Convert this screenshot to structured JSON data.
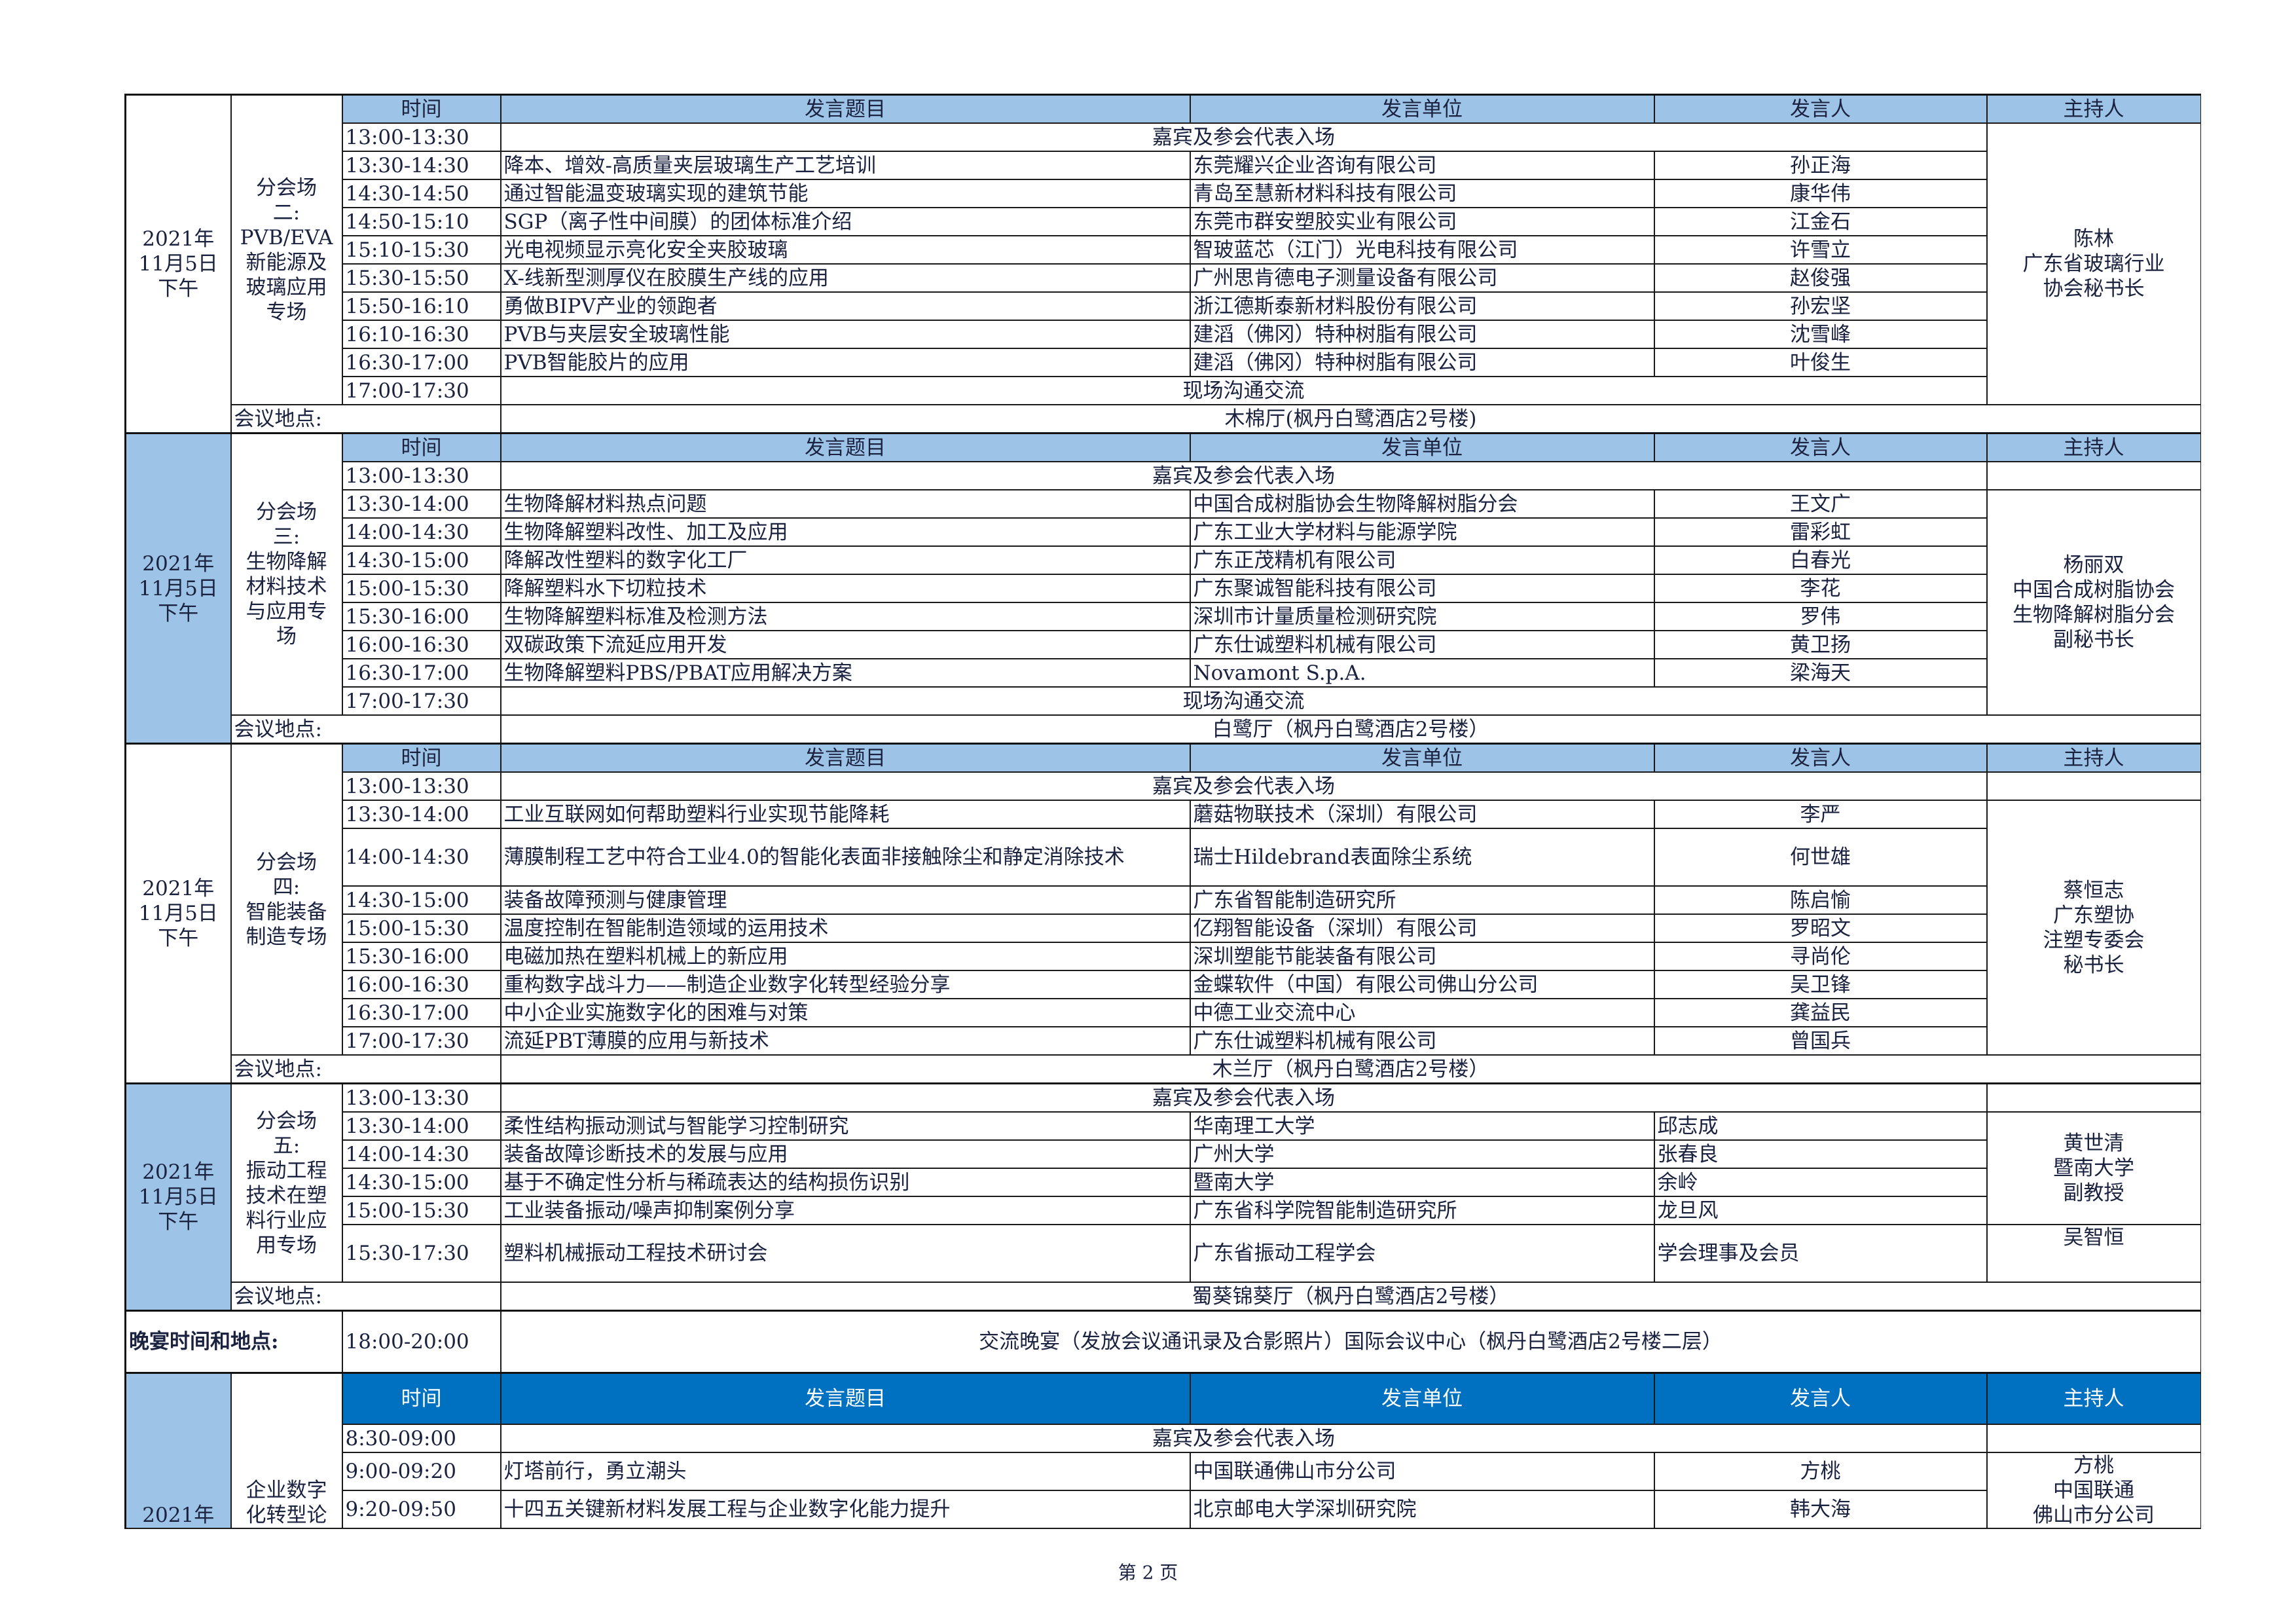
{
  "columns": [
    "时间",
    "发言题目",
    "发言单位",
    "发言人",
    "主持人"
  ],
  "location_label": "会议地点:",
  "sessions": [
    {
      "date": "2021年\n11月5日\n下午",
      "date_highlight": false,
      "name": "分会场\n二:\nPVB/EVA\n新能源及\n玻璃应用\n专场",
      "header": "light",
      "rows": [
        {
          "time": "13:00-13:30",
          "note": "嘉宾及参会代表入场"
        },
        {
          "time": "13:30-14:30",
          "topic": "降本、增效-高质量夹层玻璃生产工艺培训",
          "unit": "东莞耀兴企业咨询有限公司",
          "speaker": "孙正海"
        },
        {
          "time": "14:30-14:50",
          "topic": "通过智能温变玻璃实现的建筑节能",
          "unit": "青岛至慧新材料科技有限公司",
          "speaker": "康华伟"
        },
        {
          "time": "14:50-15:10",
          "topic": "SGP（离子性中间膜）的团体标准介绍",
          "unit": "东莞市群安塑胶实业有限公司",
          "speaker": "江金石"
        },
        {
          "time": "15:10-15:30",
          "topic": "光电视频显示亮化安全夹胶玻璃",
          "unit": "智玻蓝芯（江门）光电科技有限公司",
          "speaker": "许雪立"
        },
        {
          "time": "15:30-15:50",
          "topic": "X-线新型测厚仪在胶膜生产线的应用",
          "unit": "广州思肯德电子测量设备有限公司",
          "speaker": "赵俊强"
        },
        {
          "time": "15:50-16:10",
          "topic": "勇做BIPV产业的领跑者",
          "unit": "浙江德斯泰新材料股份有限公司",
          "speaker": "孙宏坚"
        },
        {
          "time": "16:10-16:30",
          "topic": "PVB与夹层安全玻璃性能",
          "unit": "建滔（佛冈）特种树脂有限公司",
          "speaker": "沈雪峰"
        },
        {
          "time": "16:30-17:00",
          "topic": "PVB智能胶片的应用",
          "unit": "建滔（佛冈）特种树脂有限公司",
          "speaker": "叶俊生"
        },
        {
          "time": "17:00-17:30",
          "note": "现场沟通交流"
        }
      ],
      "hosts": [
        {
          "text": "陈林\n广东省玻璃行业\n协会秘书长",
          "span": 10
        }
      ],
      "location": "木棉厅(枫丹白鹭酒店2号楼)"
    },
    {
      "date": "2021年\n11月5日\n下午",
      "date_highlight": true,
      "name": "分会场\n三:\n生物降解\n材料技术\n与应用专\n场",
      "header": "light",
      "rows": [
        {
          "time": "13:00-13:30",
          "note": "嘉宾及参会代表入场"
        },
        {
          "time": "13:30-14:00",
          "topic": "生物降解材料热点问题",
          "unit": "中国合成树脂协会生物降解树脂分会",
          "speaker": "王文广"
        },
        {
          "time": "14:00-14:30",
          "topic": "生物降解塑料改性、加工及应用",
          "unit": "广东工业大学材料与能源学院",
          "speaker": "雷彩虹"
        },
        {
          "time": "14:30-15:00",
          "topic": "降解改性塑料的数字化工厂",
          "unit": "广东正茂精机有限公司",
          "speaker": "白春光"
        },
        {
          "time": "15:00-15:30",
          "topic": "降解塑料水下切粒技术",
          "unit": "广东聚诚智能科技有限公司",
          "speaker": "李花"
        },
        {
          "time": "15:30-16:00",
          "topic": "生物降解塑料标准及检测方法",
          "unit": "深圳市计量质量检测研究院",
          "speaker": "罗伟"
        },
        {
          "time": "16:00-16:30",
          "topic": "双碳政策下流延应用开发",
          "unit": "广东仕诚塑料机械有限公司",
          "speaker": "黄卫扬"
        },
        {
          "time": "16:30-17:00",
          "topic": "生物降解塑料PBS/PBAT应用解决方案",
          "unit": "Novamont S.p.A.",
          "speaker": "梁海天"
        },
        {
          "time": "17:00-17:30",
          "note": "现场沟通交流"
        }
      ],
      "hosts": [
        {
          "text": "",
          "span": 1
        },
        {
          "text": "杨丽双\n中国合成树脂协会\n生物降解树脂分会\n副秘书长",
          "span": 8
        }
      ],
      "location": "白鹭厅（枫丹白鹭酒店2号楼）"
    },
    {
      "date": "2021年\n11月5日\n下午",
      "date_highlight": false,
      "name": "分会场\n四:\n智能装备\n制造专场",
      "header": "light",
      "rows": [
        {
          "time": "13:00-13:30",
          "note": "嘉宾及参会代表入场"
        },
        {
          "time": "13:30-14:00",
          "topic": "工业互联网如何帮助塑料行业实现节能降耗",
          "unit": "蘑菇物联技术（深圳）有限公司",
          "speaker": "李严"
        },
        {
          "time": "14:00-14:30",
          "topic": "薄膜制程工艺中符合工业4.0的智能化表面非接触除尘和静定消除技术",
          "unit": "瑞士Hildebrand表面除尘系统",
          "speaker": "何世雄",
          "tall": true
        },
        {
          "time": "14:30-15:00",
          "topic": "装备故障预测与健康管理",
          "unit": "广东省智能制造研究所",
          "speaker": "陈启愉"
        },
        {
          "time": "15:00-15:30",
          "topic": "温度控制在智能制造领域的运用技术",
          "unit": "亿翔智能设备（深圳）有限公司",
          "speaker": "罗昭文"
        },
        {
          "time": "15:30-16:00",
          "topic": "电磁加热在塑料机械上的新应用",
          "unit": "深圳塑能节能装备有限公司",
          "speaker": "寻尚伦"
        },
        {
          "time": "16:00-16:30",
          "topic": "重构数字战斗力——制造企业数字化转型经验分享",
          "unit": "金蝶软件（中国）有限公司佛山分公司",
          "speaker": "吴卫锋"
        },
        {
          "time": "16:30-17:00",
          "topic": "中小企业实施数字化的困难与对策",
          "unit": "中德工业交流中心",
          "speaker": "龚益民"
        },
        {
          "time": "17:00-17:30",
          "topic": "流延PBT薄膜的应用与新技术",
          "unit": "广东仕诚塑料机械有限公司",
          "speaker": "曾国兵"
        }
      ],
      "hosts": [
        {
          "text": "",
          "span": 1
        },
        {
          "text": "蔡恒志\n广东塑协\n注塑专委会\n秘书长",
          "span": 8
        }
      ],
      "location": "木兰厅（枫丹白鹭酒店2号楼）"
    },
    {
      "date": "2021年\n11月5日\n下午",
      "date_highlight": true,
      "name": "分会场\n五:\n振动工程\n技术在塑\n料行业应\n用专场",
      "header": "none",
      "speaker_align": "left",
      "rows": [
        {
          "time": "13:00-13:30",
          "note": "嘉宾及参会代表入场"
        },
        {
          "time": "13:30-14:00",
          "topic": "柔性结构振动测试与智能学习控制研究",
          "unit": "华南理工大学",
          "speaker": "邱志成"
        },
        {
          "time": "14:00-14:30",
          "topic": "装备故障诊断技术的发展与应用",
          "unit": "广州大学",
          "speaker": "张春良"
        },
        {
          "time": "14:30-15:00",
          "topic": "基于不确定性分析与稀疏表达的结构损伤识别",
          "unit": "暨南大学",
          "speaker": "余岭"
        },
        {
          "time": "15:00-15:30",
          "topic": "工业装备振动/噪声抑制案例分享",
          "unit": "广东省科学院智能制造研究所",
          "speaker": "龙旦风"
        },
        {
          "time": "15:30-17:30",
          "topic": "塑料机械振动工程技术研讨会",
          "unit": "广东省振动工程学会",
          "speaker": "学会理事及会员",
          "tall": true
        }
      ],
      "hosts": [
        {
          "text": "",
          "span": 1
        },
        {
          "text": "黄世清\n暨南大学\n副教授",
          "span": 4
        },
        {
          "text": "吴智恒",
          "span": 1,
          "top": true
        }
      ],
      "location": "蜀葵锦葵厅（枫丹白鹭酒店2号楼）"
    }
  ],
  "banquet": {
    "label": "晚宴时间和地点:",
    "time": "18:00-20:00",
    "text": "交流晚宴（发放会议通讯录及合影照片）国际会议中心（枫丹白鹭酒店2号楼二层）"
  },
  "last_session": {
    "date": "2021年",
    "date_highlight": true,
    "name": "企业数字\n化转型论",
    "header": "dark",
    "rows": [
      {
        "time": "8:30-09:00",
        "note": "嘉宾及参会代表入场"
      },
      {
        "time": "9:00-09:20",
        "topic": "灯塔前行，勇立潮头",
        "unit": "中国联通佛山市分公司",
        "speaker": "方桃"
      },
      {
        "time": "9:20-09:50",
        "topic": "十四五关键新材料发展工程与企业数字化能力提升",
        "unit": "北京邮电大学深圳研究院",
        "speaker": "韩大海"
      }
    ],
    "hosts": [
      {
        "text": "",
        "span": 1
      },
      {
        "text": "方桃\n中国联通\n佛山市分公司",
        "span": 2
      }
    ]
  },
  "footer": "第 2 页",
  "colors": {
    "header_light": "#9dc3e6",
    "header_dark": "#0070c0",
    "date_highlight": "#9dc3e6"
  }
}
